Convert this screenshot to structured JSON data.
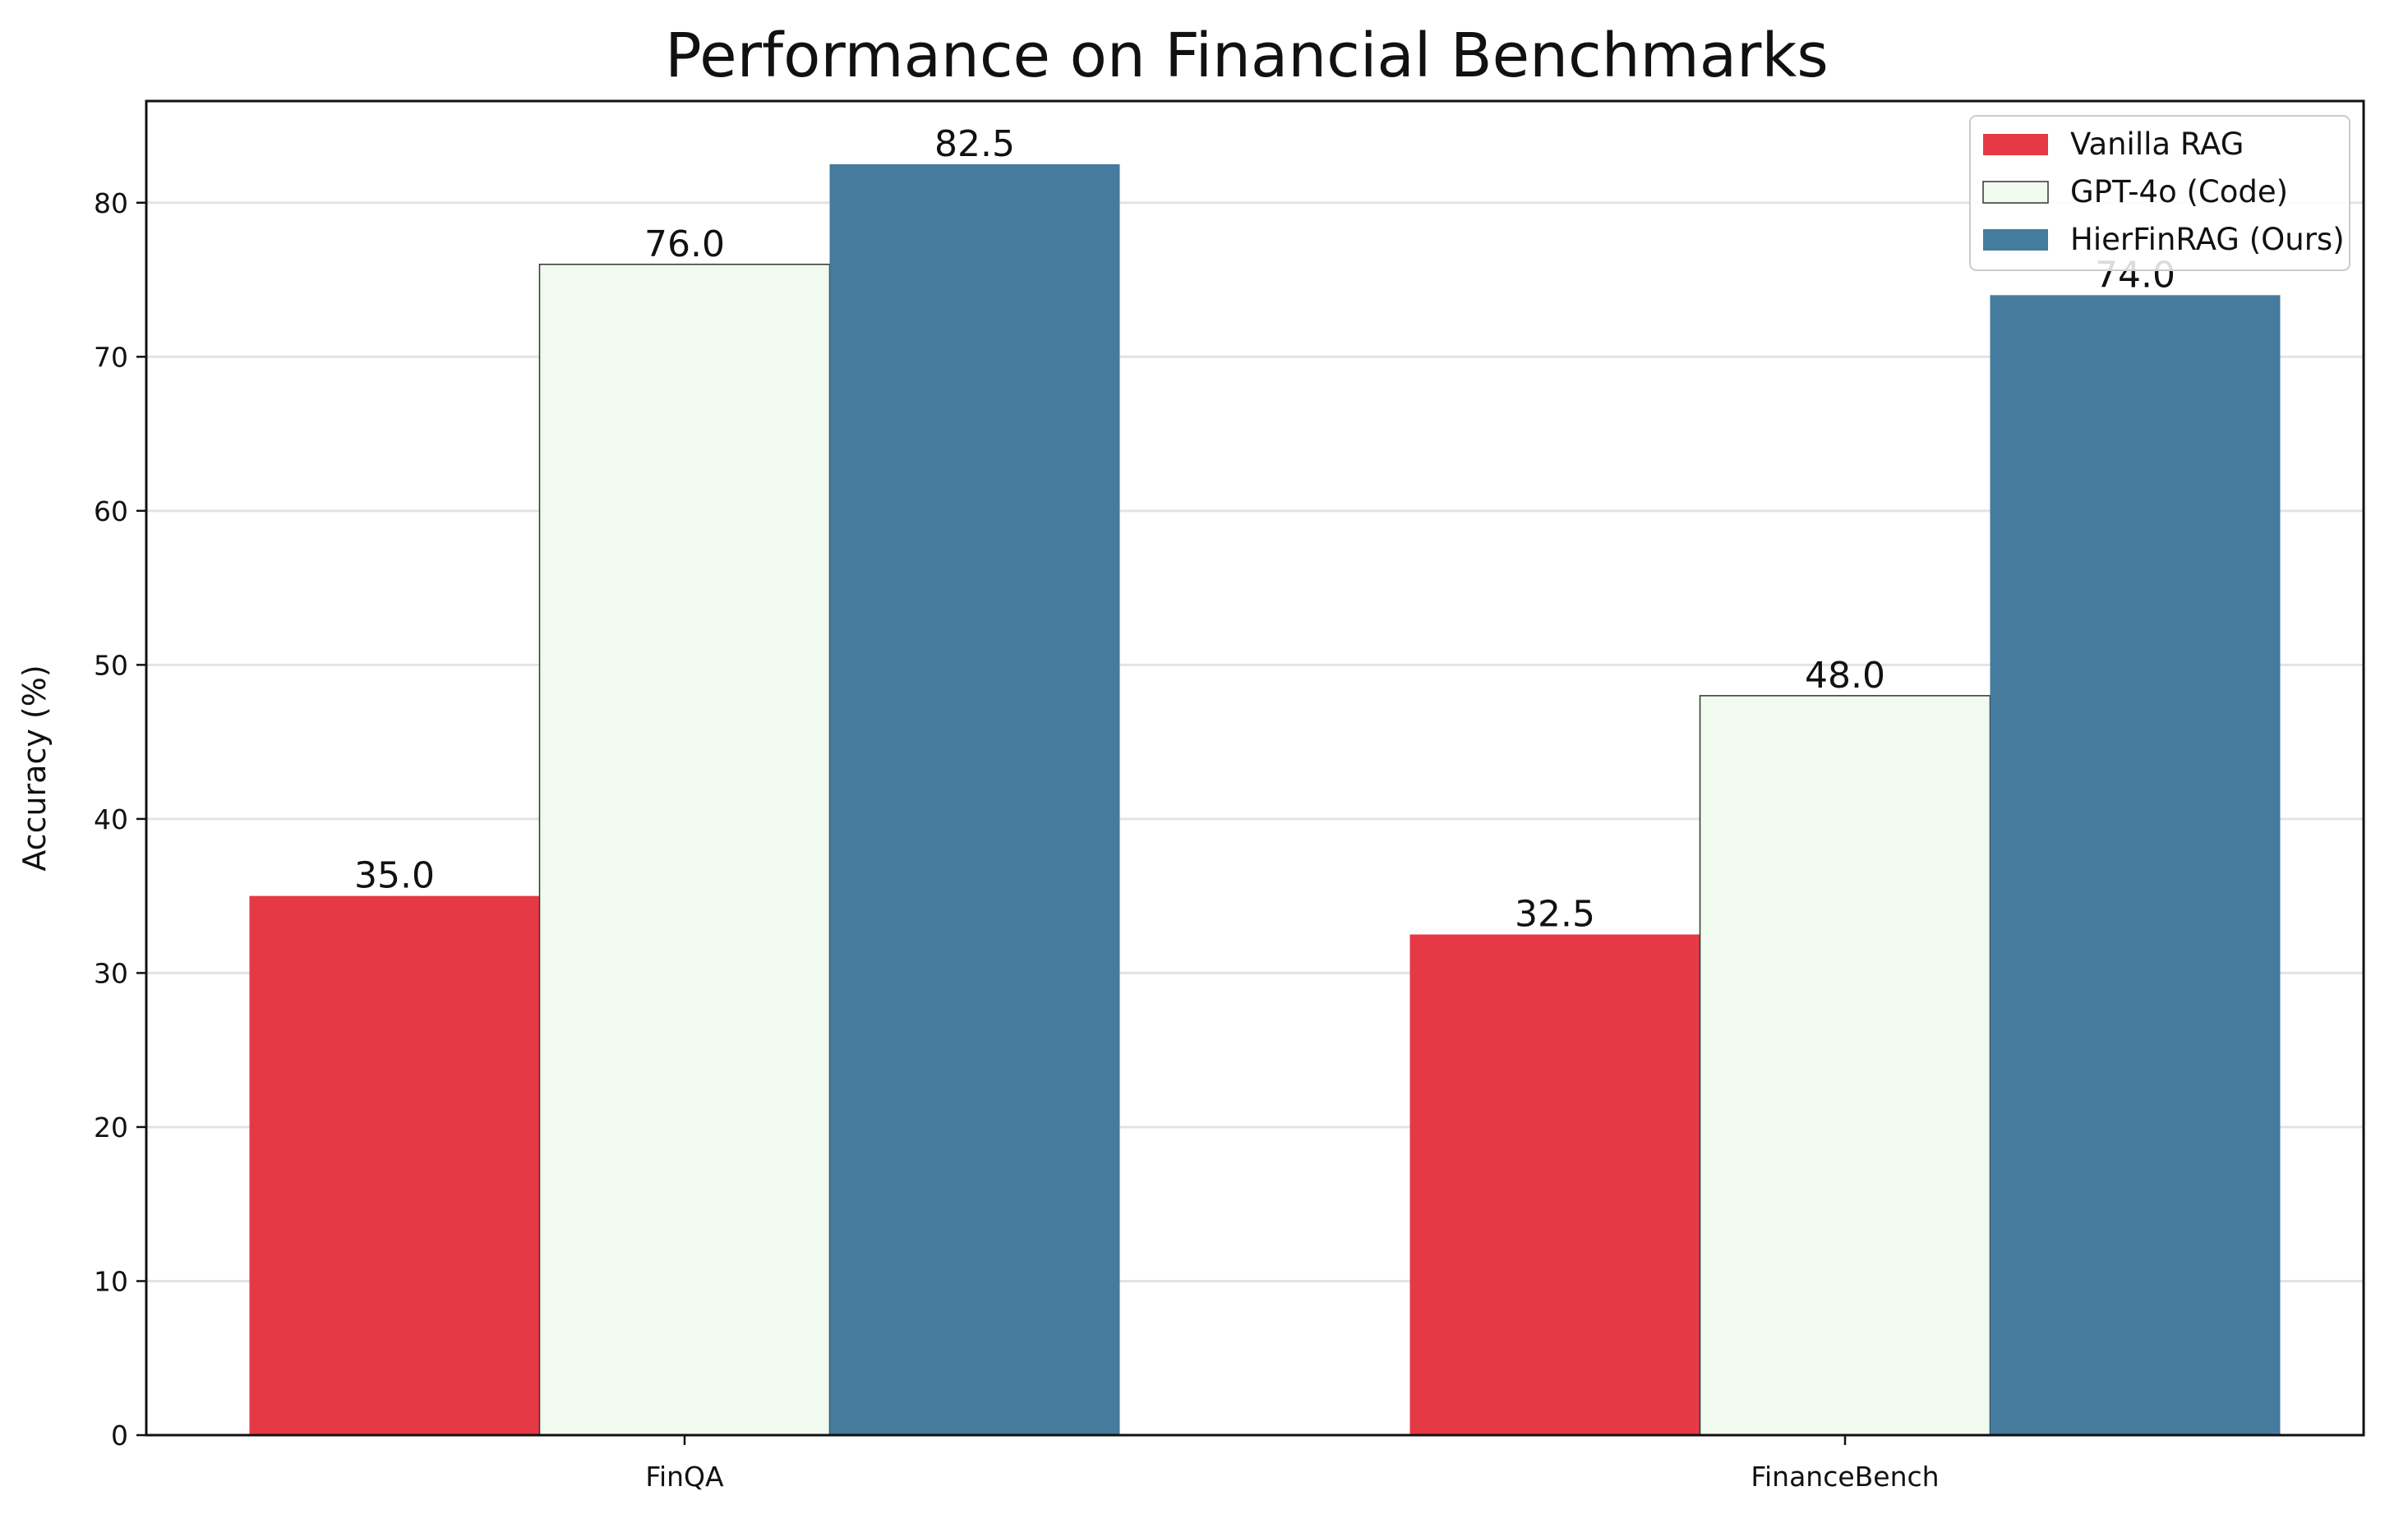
{
  "chart_data": {
    "type": "bar",
    "title": "Performance on Financial Benchmarks",
    "xlabel": "",
    "ylabel": "Accuracy (%)",
    "categories": [
      "FinQA",
      "FinanceBench"
    ],
    "ylim": [
      0,
      86.6
    ],
    "yticks": [
      0,
      10,
      20,
      30,
      40,
      50,
      60,
      70,
      80
    ],
    "grid": "horizontal",
    "legend_position": "top-right",
    "series": [
      {
        "name": "Vanilla RAG",
        "values": [
          35.0,
          32.5
        ],
        "labels": [
          "35.0",
          "32.5"
        ],
        "color": "#e63946",
        "edge": ""
      },
      {
        "name": "GPT-4o (Code)",
        "values": [
          76.0,
          48.0
        ],
        "labels": [
          "76.0",
          "48.0"
        ],
        "color": "#f1faee",
        "edge": "#333333"
      },
      {
        "name": "HierFinRAG (Ours)",
        "values": [
          82.5,
          74.0
        ],
        "labels": [
          "82.5",
          "74.0"
        ],
        "color": "#457b9d",
        "edge": ""
      }
    ]
  }
}
